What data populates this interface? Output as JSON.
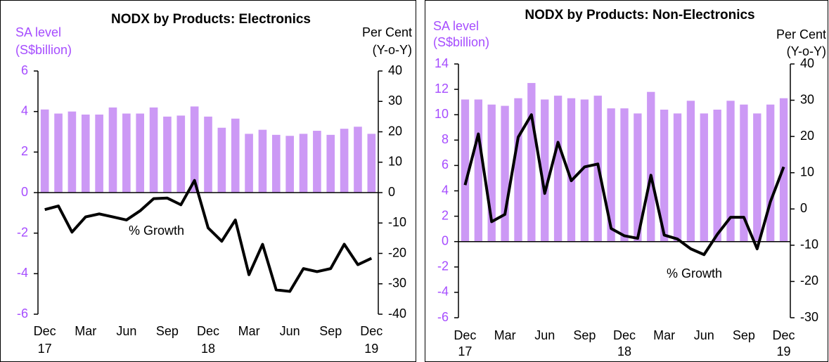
{
  "chart_data": [
    {
      "type": "bar_line",
      "title": "NODX by Products: Electronics",
      "y_label": [
        "SA level",
        "(S$billion)"
      ],
      "y2_label": [
        "Per Cent",
        "(Y-o-Y)"
      ],
      "annotation": "% Growth",
      "categories": [
        "Dec",
        null,
        null,
        "Mar",
        null,
        null,
        "Jun",
        null,
        null,
        "Sep",
        null,
        null,
        "Dec",
        null,
        null,
        "Mar",
        null,
        null,
        "Jun",
        null,
        null,
        "Sep",
        null,
        null,
        "Dec"
      ],
      "years": [
        "17",
        null,
        null,
        null,
        null,
        null,
        null,
        null,
        null,
        null,
        null,
        null,
        "18",
        null,
        null,
        null,
        null,
        null,
        null,
        null,
        null,
        null,
        null,
        null,
        "19"
      ],
      "series": [
        {
          "color": "#cc99f5",
          "values": [
            4.1,
            3.9,
            4.0,
            3.85,
            3.85,
            4.2,
            3.9,
            3.9,
            4.2,
            3.75,
            3.8,
            4.25,
            3.75,
            3.2,
            3.65,
            2.9,
            3.1,
            2.85,
            2.8,
            2.9,
            3.05,
            2.85,
            3.15,
            3.25,
            2.9
          ]
        },
        {
          "color": "#000000",
          "axis": "y2",
          "values": [
            -5.6,
            -4.4,
            -13,
            -8,
            -7,
            -8,
            -9,
            -6,
            -2,
            -1.8,
            -4,
            4,
            -11.6,
            -16,
            -9,
            -27,
            -17,
            -32,
            -32.5,
            -25,
            -26,
            -25,
            -17,
            -23.7,
            -21.6
          ]
        }
      ],
      "ylim": [
        -6,
        6
      ],
      "yticks": [
        -6,
        -4,
        -2,
        0,
        2,
        4,
        6
      ],
      "y2lim": [
        -40,
        40
      ],
      "y2ticks": [
        -40,
        -30,
        -20,
        -10,
        0,
        10,
        20,
        30,
        40
      ]
    },
    {
      "type": "bar_line",
      "title": "NODX by Products: Non-Electronics",
      "y_label": [
        "SA level",
        "(S$billion)"
      ],
      "y2_label": [
        "Per Cent",
        "(Y-o-Y)"
      ],
      "annotation": "% Growth",
      "categories": [
        "Dec",
        null,
        null,
        "Mar",
        null,
        null,
        "Jun",
        null,
        null,
        "Sep",
        null,
        null,
        "Dec",
        null,
        null,
        "Mar",
        null,
        null,
        "Jun",
        null,
        null,
        "Sep",
        null,
        null,
        "Dec"
      ],
      "years": [
        "17",
        null,
        null,
        null,
        null,
        null,
        null,
        null,
        null,
        null,
        null,
        null,
        "18",
        null,
        null,
        null,
        null,
        null,
        null,
        null,
        null,
        null,
        null,
        null,
        "19"
      ],
      "series": [
        {
          "color": "#cc99f5",
          "values": [
            11.2,
            11.2,
            10.8,
            10.7,
            11.3,
            12.5,
            11.2,
            11.5,
            11.3,
            11.2,
            11.5,
            10.5,
            10.5,
            10.1,
            11.8,
            10.4,
            10.1,
            11.1,
            10.1,
            10.4,
            11.1,
            10.8,
            10.1,
            10.8,
            11.3
          ]
        },
        {
          "color": "#000000",
          "axis": "y2",
          "values": [
            6.6,
            20.7,
            -3.5,
            -1.5,
            19.8,
            26,
            4.3,
            18.4,
            7.8,
            11.6,
            12.4,
            -5.4,
            -7.4,
            -8.1,
            9.3,
            -7.2,
            -8.3,
            -11,
            -12.6,
            -7,
            -2.3,
            -2.3,
            -11,
            2,
            11.6
          ]
        }
      ],
      "ylim": [
        -6,
        14
      ],
      "yticks": [
        -6,
        -4,
        -2,
        0,
        2,
        4,
        6,
        8,
        10,
        12,
        14
      ],
      "y2lim": [
        -30,
        40
      ],
      "y2ticks": [
        -30,
        -20,
        -10,
        0,
        10,
        20,
        30,
        40
      ]
    }
  ]
}
